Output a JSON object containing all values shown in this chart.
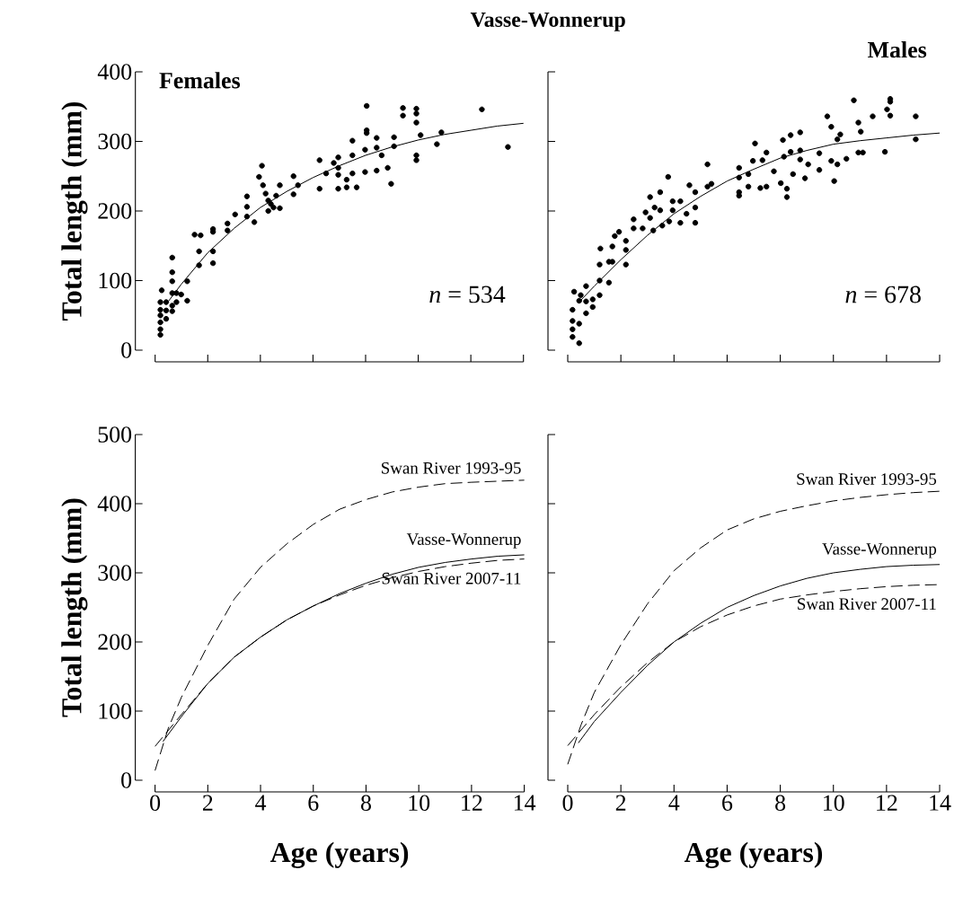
{
  "chart_data": [
    {
      "type": "scatter",
      "title": "Vasse-Wonnerup",
      "subtitle": "Females",
      "ylabel": "Total length (mm)",
      "xlim": [
        0,
        14
      ],
      "ylim": [
        0,
        400
      ],
      "xticks": [
        0,
        2,
        4,
        6,
        8,
        10,
        12,
        14
      ],
      "yticks": [
        0,
        100,
        200,
        300,
        400
      ],
      "tick_labels": "y",
      "annotations": [
        "*n* = 534"
      ],
      "series": [
        {
          "type": "scatter",
          "marker": "circle",
          "color": "#000000",
          "x": [
            0.2,
            0.2,
            0.2,
            0.2,
            0.2,
            0.2,
            0.25,
            0.42,
            0.42,
            0.42,
            0.65,
            0.65,
            0.65,
            0.65,
            0.65,
            0.65,
            0.81,
            0.81,
            0.99,
            1.22,
            1.22,
            1.5,
            1.73,
            1.67,
            1.67,
            2.2,
            2.2,
            2.2,
            2.2,
            2.75,
            2.75,
            3.04,
            3.49,
            3.49,
            3.49,
            3.77,
            3.95,
            4.06,
            4.1,
            4.2,
            4.3,
            4.4,
            4.5,
            4.6,
            4.3,
            4.74,
            4.74,
            5.26,
            5.26,
            5.43,
            6.25,
            6.25,
            6.5,
            6.79,
            6.96,
            6.96,
            6.96,
            6.96,
            7.28,
            7.28,
            7.5,
            7.5,
            7.5,
            7.66,
            7.98,
            7.98,
            8.04,
            8.04,
            8.04,
            8.42,
            8.42,
            8.42,
            8.61,
            8.84,
            8.97,
            9.08,
            9.08,
            9.42,
            9.42,
            9.93,
            9.93,
            9.93,
            9.93,
            9.93,
            10.09,
            10.71,
            10.88,
            12.42,
            13.41
          ],
          "values": [
            22,
            30,
            40,
            50,
            58,
            69,
            86,
            45,
            57,
            69,
            133,
            112,
            99,
            82,
            64,
            56,
            82,
            69,
            80,
            99,
            71,
            166,
            165,
            142,
            122,
            174,
            170,
            142,
            125,
            182,
            172,
            195,
            221,
            206,
            192,
            184,
            249,
            265,
            237,
            225,
            215,
            210,
            205,
            222,
            200,
            237,
            204,
            250,
            224,
            237,
            273,
            232,
            254,
            269,
            277,
            262,
            252,
            232,
            245,
            234,
            301,
            280,
            254,
            234,
            288,
            256,
            351,
            316,
            312,
            305,
            291,
            258,
            280,
            262,
            239,
            306,
            293,
            348,
            337,
            347,
            340,
            327,
            280,
            273,
            309,
            296,
            313,
            346,
            292
          ]
        },
        {
          "type": "line",
          "marker": "none",
          "line_style": "solid",
          "color": "#000000",
          "x": [
            0.5,
            1,
            2,
            3,
            4,
            5,
            6,
            7,
            8,
            9,
            10,
            11,
            12,
            13,
            14
          ],
          "values": [
            70,
            95,
            140,
            175,
            205,
            228,
            248,
            265,
            280,
            292,
            302,
            310,
            316,
            322,
            326
          ]
        }
      ]
    },
    {
      "type": "scatter",
      "subtitle": "Males",
      "xlim": [
        0,
        14
      ],
      "ylim": [
        0,
        400
      ],
      "xticks": [
        0,
        2,
        4,
        6,
        8,
        10,
        12,
        14
      ],
      "yticks": [
        0,
        100,
        200,
        300,
        400
      ],
      "tick_labels": false,
      "annotations": [
        "*n* = 678"
      ],
      "series": [
        {
          "type": "scatter",
          "marker": "circle",
          "color": "#000000",
          "x": [
            0.18,
            0.18,
            0.18,
            0.18,
            0.24,
            0.43,
            0.43,
            0.43,
            0.49,
            0.69,
            0.69,
            0.69,
            0.94,
            0.94,
            1.2,
            1.2,
            1.2,
            1.23,
            1.55,
            1.55,
            1.68,
            1.68,
            1.77,
            1.93,
            2.19,
            2.19,
            2.19,
            2.48,
            2.48,
            2.82,
            2.93,
            3.1,
            3.1,
            3.22,
            3.27,
            3.48,
            3.48,
            3.56,
            3.78,
            3.82,
            3.95,
            3.95,
            4.24,
            4.24,
            4.47,
            4.58,
            4.8,
            4.8,
            4.8,
            5.26,
            5.26,
            5.41,
            6.45,
            6.45,
            6.45,
            6.45,
            6.8,
            6.8,
            6.97,
            7.05,
            7.25,
            7.33,
            7.48,
            7.48,
            7.76,
            8.02,
            8.1,
            8.14,
            8.25,
            8.25,
            8.39,
            8.39,
            8.48,
            8.75,
            8.75,
            8.75,
            8.93,
            9.05,
            9.47,
            9.47,
            9.77,
            9.92,
            9.92,
            10.03,
            10.15,
            10.15,
            10.26,
            10.49,
            10.77,
            10.94,
            10.94,
            11.03,
            11.11,
            11.48,
            11.94,
            12.02,
            12.14,
            12.14,
            12.14,
            13.1,
            13.1
          ],
          "values": [
            19,
            30,
            42,
            58,
            84,
            10,
            38,
            71,
            79,
            92,
            70,
            53,
            73,
            62,
            123,
            100,
            79,
            146,
            127,
            97,
            149,
            127,
            164,
            170,
            157,
            144,
            123,
            188,
            175,
            175,
            198,
            220,
            190,
            172,
            205,
            227,
            201,
            179,
            249,
            185,
            214,
            201,
            214,
            183,
            196,
            237,
            227,
            205,
            183,
            267,
            235,
            239,
            262,
            248,
            227,
            222,
            253,
            235,
            272,
            297,
            233,
            273,
            284,
            235,
            257,
            240,
            302,
            278,
            220,
            232,
            309,
            285,
            253,
            313,
            287,
            274,
            247,
            267,
            283,
            259,
            336,
            321,
            272,
            243,
            303,
            267,
            310,
            275,
            359,
            327,
            284,
            314,
            284,
            336,
            285,
            346,
            361,
            357,
            337,
            336,
            303
          ]
        },
        {
          "type": "line",
          "marker": "none",
          "line_style": "solid",
          "color": "#000000",
          "x": [
            0.5,
            1,
            2,
            3,
            4,
            5,
            6,
            7,
            8,
            9,
            10,
            11,
            12,
            13,
            14
          ],
          "values": [
            72,
            92,
            130,
            165,
            196,
            221,
            243,
            260,
            276,
            287,
            296,
            301,
            305,
            309,
            312
          ]
        }
      ]
    },
    {
      "type": "line",
      "xlabel": "Age (years)",
      "ylabel": "Total length (mm)",
      "xlim": [
        0,
        14
      ],
      "ylim": [
        0,
        500
      ],
      "xticks": [
        0,
        2,
        4,
        6,
        8,
        10,
        12,
        14
      ],
      "yticks": [
        0,
        100,
        200,
        300,
        400,
        500
      ],
      "series": [
        {
          "name": "Swan River 1993-95",
          "line_style": "dashed",
          "color": "#000000",
          "x": [
            0,
            0.5,
            1,
            2,
            3,
            4,
            5,
            6,
            7,
            8,
            9,
            10,
            11,
            12,
            14
          ],
          "values": [
            14,
            75,
            120,
            195,
            262,
            308,
            342,
            370,
            392,
            406,
            417,
            424,
            429,
            431,
            434
          ]
        },
        {
          "name": "Vasse-Wonnerup",
          "line_style": "solid",
          "color": "#000000",
          "x": [
            0.3,
            1,
            2,
            3,
            4,
            5,
            6,
            7,
            8,
            9,
            10,
            11,
            12,
            13,
            14
          ],
          "values": [
            56,
            92,
            140,
            178,
            207,
            232,
            252,
            270,
            285,
            298,
            308,
            315,
            320,
            324,
            326
          ]
        },
        {
          "name": "Swan River 2007-11",
          "line_style": "dashed",
          "color": "#000000",
          "x": [
            0,
            1,
            2,
            3,
            4,
            5,
            6,
            7,
            8,
            9,
            10,
            11,
            12,
            13,
            14
          ],
          "values": [
            49,
            95,
            140,
            178,
            207,
            232,
            252,
            268,
            282,
            293,
            302,
            309,
            314,
            318,
            320
          ]
        }
      ]
    },
    {
      "type": "line",
      "xlabel": "Age (years)",
      "xlim": [
        0,
        14
      ],
      "ylim": [
        0,
        500
      ],
      "xticks": [
        0,
        2,
        4,
        6,
        8,
        10,
        12,
        14
      ],
      "yticks": [
        0,
        100,
        200,
        300,
        400,
        500
      ],
      "tick_labels": "x",
      "series": [
        {
          "name": "Swan River 1993-95",
          "line_style": "dashed",
          "color": "#000000",
          "x": [
            0,
            0.5,
            1,
            2,
            3,
            4,
            5,
            6,
            7,
            8,
            9,
            10,
            11,
            12,
            13,
            14
          ],
          "values": [
            23,
            80,
            127,
            196,
            255,
            303,
            336,
            362,
            378,
            389,
            397,
            404,
            409,
            413,
            416,
            418
          ]
        },
        {
          "name": "Vasse-Wonnerup",
          "line_style": "solid",
          "color": "#000000",
          "x": [
            0.4,
            1,
            2,
            3,
            4,
            5,
            6,
            7,
            8,
            9,
            10,
            11,
            12,
            13,
            14
          ],
          "values": [
            54,
            85,
            127,
            166,
            200,
            227,
            250,
            267,
            281,
            292,
            300,
            305,
            309,
            311,
            312
          ]
        },
        {
          "name": "Swan River 2007-11",
          "line_style": "dashed",
          "color": "#000000",
          "x": [
            0,
            1,
            2,
            3,
            4,
            5,
            6,
            7,
            8,
            9,
            10,
            11,
            12,
            13,
            14
          ],
          "values": [
            50,
            95,
            135,
            170,
            200,
            222,
            239,
            252,
            262,
            268,
            273,
            277,
            280,
            282,
            283
          ]
        }
      ]
    }
  ]
}
